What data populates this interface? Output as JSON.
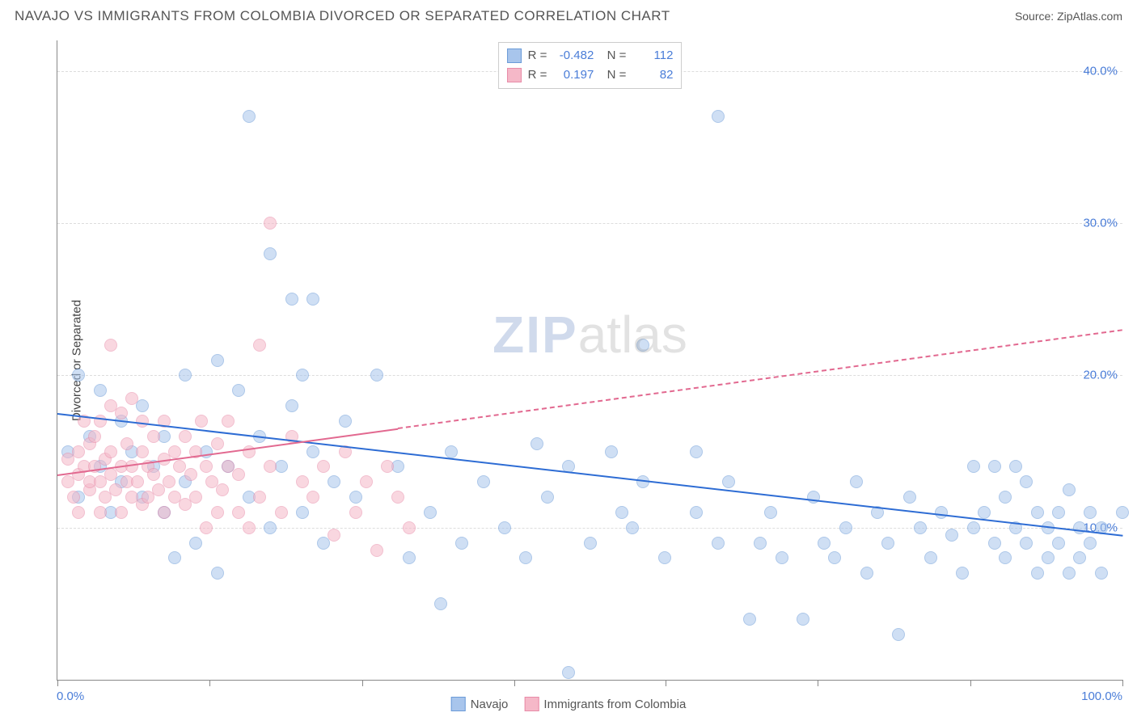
{
  "header": {
    "title": "NAVAJO VS IMMIGRANTS FROM COLOMBIA DIVORCED OR SEPARATED CORRELATION CHART",
    "source_label": "Source:",
    "source_link": "ZipAtlas.com"
  },
  "chart": {
    "type": "scatter",
    "ylabel": "Divorced or Separated",
    "xlim": [
      0,
      100
    ],
    "ylim": [
      0,
      42
    ],
    "x_ticks": [
      0,
      14.3,
      28.6,
      42.9,
      57.1,
      71.4,
      85.7,
      100
    ],
    "x_axis_labels": {
      "min": "0.0%",
      "max": "100.0%"
    },
    "y_gridlines": [
      10,
      20,
      30,
      40
    ],
    "y_tick_labels": [
      "10.0%",
      "20.0%",
      "30.0%",
      "40.0%"
    ],
    "background_color": "#ffffff",
    "grid_color": "#dddddd",
    "axis_color": "#888888",
    "watermark": {
      "part1": "ZIP",
      "part2": "atlas"
    },
    "point_radius": 8,
    "point_opacity": 0.55,
    "series": [
      {
        "name": "Navajo",
        "color_fill": "#a8c5ec",
        "color_stroke": "#6b9bd8",
        "trend": {
          "x1": 0,
          "y1": 17.5,
          "x2": 100,
          "y2": 9.5,
          "color": "#2d6cd4",
          "width": 2,
          "solid_until_x": 100
        },
        "points": [
          [
            1,
            15
          ],
          [
            2,
            12
          ],
          [
            2,
            20
          ],
          [
            3,
            16
          ],
          [
            4,
            14
          ],
          [
            4,
            19
          ],
          [
            5,
            11
          ],
          [
            6,
            13
          ],
          [
            6,
            17
          ],
          [
            7,
            15
          ],
          [
            8,
            12
          ],
          [
            8,
            18
          ],
          [
            9,
            14
          ],
          [
            10,
            11
          ],
          [
            10,
            16
          ],
          [
            11,
            8
          ],
          [
            12,
            20
          ],
          [
            12,
            13
          ],
          [
            13,
            9
          ],
          [
            14,
            15
          ],
          [
            15,
            7
          ],
          [
            15,
            21
          ],
          [
            16,
            14
          ],
          [
            17,
            19
          ],
          [
            18,
            12
          ],
          [
            18,
            37
          ],
          [
            19,
            16
          ],
          [
            20,
            10
          ],
          [
            20,
            28
          ],
          [
            21,
            14
          ],
          [
            22,
            18
          ],
          [
            22,
            25
          ],
          [
            23,
            11
          ],
          [
            23,
            20
          ],
          [
            24,
            15
          ],
          [
            24,
            25
          ],
          [
            25,
            9
          ],
          [
            26,
            13
          ],
          [
            27,
            17
          ],
          [
            28,
            12
          ],
          [
            30,
            20
          ],
          [
            32,
            14
          ],
          [
            33,
            8
          ],
          [
            35,
            11
          ],
          [
            36,
            5
          ],
          [
            37,
            15
          ],
          [
            38,
            9
          ],
          [
            40,
            13
          ],
          [
            42,
            10
          ],
          [
            44,
            8
          ],
          [
            45,
            15.5
          ],
          [
            46,
            12
          ],
          [
            48,
            14
          ],
          [
            48,
            0.5
          ],
          [
            50,
            9
          ],
          [
            52,
            15
          ],
          [
            53,
            11
          ],
          [
            54,
            10
          ],
          [
            55,
            13
          ],
          [
            55,
            22
          ],
          [
            57,
            8
          ],
          [
            60,
            11
          ],
          [
            60,
            15
          ],
          [
            62,
            9
          ],
          [
            62,
            37
          ],
          [
            63,
            13
          ],
          [
            65,
            4
          ],
          [
            66,
            9
          ],
          [
            67,
            11
          ],
          [
            68,
            8
          ],
          [
            70,
            4
          ],
          [
            71,
            12
          ],
          [
            72,
            9
          ],
          [
            73,
            8
          ],
          [
            74,
            10
          ],
          [
            75,
            13
          ],
          [
            76,
            7
          ],
          [
            77,
            11
          ],
          [
            78,
            9
          ],
          [
            79,
            3
          ],
          [
            80,
            12
          ],
          [
            81,
            10
          ],
          [
            82,
            8
          ],
          [
            83,
            11
          ],
          [
            84,
            9.5
          ],
          [
            85,
            7
          ],
          [
            86,
            10
          ],
          [
            86,
            14
          ],
          [
            87,
            11
          ],
          [
            88,
            9
          ],
          [
            88,
            14
          ],
          [
            89,
            8
          ],
          [
            89,
            12
          ],
          [
            90,
            14
          ],
          [
            90,
            10
          ],
          [
            91,
            9
          ],
          [
            91,
            13
          ],
          [
            92,
            7
          ],
          [
            92,
            11
          ],
          [
            93,
            10
          ],
          [
            93,
            8
          ],
          [
            94,
            11
          ],
          [
            94,
            9
          ],
          [
            95,
            7
          ],
          [
            95,
            12.5
          ],
          [
            96,
            10
          ],
          [
            96,
            8
          ],
          [
            97,
            9
          ],
          [
            97,
            11
          ],
          [
            98,
            10
          ],
          [
            98,
            7
          ],
          [
            100,
            11
          ]
        ]
      },
      {
        "name": "Immigrants from Colombia",
        "color_fill": "#f5b8c8",
        "color_stroke": "#e88ba8",
        "trend": {
          "x1": 0,
          "y1": 13.5,
          "x2": 100,
          "y2": 23,
          "color": "#e26990",
          "width": 2,
          "solid_until_x": 32
        },
        "points": [
          [
            1,
            13
          ],
          [
            1,
            14.5
          ],
          [
            1.5,
            12
          ],
          [
            2,
            15
          ],
          [
            2,
            13.5
          ],
          [
            2,
            11
          ],
          [
            2.5,
            14
          ],
          [
            2.5,
            17
          ],
          [
            3,
            12.5
          ],
          [
            3,
            15.5
          ],
          [
            3,
            13
          ],
          [
            3.5,
            14
          ],
          [
            3.5,
            16
          ],
          [
            4,
            11
          ],
          [
            4,
            13
          ],
          [
            4,
            17
          ],
          [
            4.5,
            14.5
          ],
          [
            4.5,
            12
          ],
          [
            5,
            15
          ],
          [
            5,
            13.5
          ],
          [
            5,
            18
          ],
          [
            5,
            22
          ],
          [
            5.5,
            12.5
          ],
          [
            6,
            17.5
          ],
          [
            6,
            11
          ],
          [
            6,
            14
          ],
          [
            6.5,
            13
          ],
          [
            6.5,
            15.5
          ],
          [
            7,
            12
          ],
          [
            7,
            14
          ],
          [
            7,
            18.5
          ],
          [
            7.5,
            13
          ],
          [
            8,
            11.5
          ],
          [
            8,
            15
          ],
          [
            8,
            17
          ],
          [
            8.5,
            14
          ],
          [
            8.5,
            12
          ],
          [
            9,
            13.5
          ],
          [
            9,
            16
          ],
          [
            9.5,
            12.5
          ],
          [
            10,
            11
          ],
          [
            10,
            14.5
          ],
          [
            10,
            17
          ],
          [
            10.5,
            13
          ],
          [
            11,
            15
          ],
          [
            11,
            12
          ],
          [
            11.5,
            14
          ],
          [
            12,
            16
          ],
          [
            12,
            11.5
          ],
          [
            12.5,
            13.5
          ],
          [
            13,
            15
          ],
          [
            13,
            12
          ],
          [
            13.5,
            17
          ],
          [
            14,
            10
          ],
          [
            14,
            14
          ],
          [
            14.5,
            13
          ],
          [
            15,
            11
          ],
          [
            15,
            15.5
          ],
          [
            15.5,
            12.5
          ],
          [
            16,
            14
          ],
          [
            16,
            17
          ],
          [
            17,
            11
          ],
          [
            17,
            13.5
          ],
          [
            18,
            15
          ],
          [
            18,
            10
          ],
          [
            19,
            22
          ],
          [
            19,
            12
          ],
          [
            20,
            30
          ],
          [
            20,
            14
          ],
          [
            21,
            11
          ],
          [
            22,
            16
          ],
          [
            23,
            13
          ],
          [
            24,
            12
          ],
          [
            25,
            14
          ],
          [
            26,
            9.5
          ],
          [
            27,
            15
          ],
          [
            28,
            11
          ],
          [
            29,
            13
          ],
          [
            30,
            8.5
          ],
          [
            31,
            14
          ],
          [
            32,
            12
          ],
          [
            33,
            10
          ]
        ]
      }
    ],
    "legend_top": {
      "rows": [
        {
          "swatch_fill": "#a8c5ec",
          "swatch_stroke": "#6b9bd8",
          "r_label": "R =",
          "r_value": "-0.482",
          "n_label": "N =",
          "n_value": "112"
        },
        {
          "swatch_fill": "#f5b8c8",
          "swatch_stroke": "#e88ba8",
          "r_label": "R =",
          "r_value": "0.197",
          "n_label": "N =",
          "n_value": "82"
        }
      ]
    },
    "legend_bottom": [
      {
        "swatch_fill": "#a8c5ec",
        "swatch_stroke": "#6b9bd8",
        "label": "Navajo"
      },
      {
        "swatch_fill": "#f5b8c8",
        "swatch_stroke": "#e88ba8",
        "label": "Immigrants from Colombia"
      }
    ]
  }
}
